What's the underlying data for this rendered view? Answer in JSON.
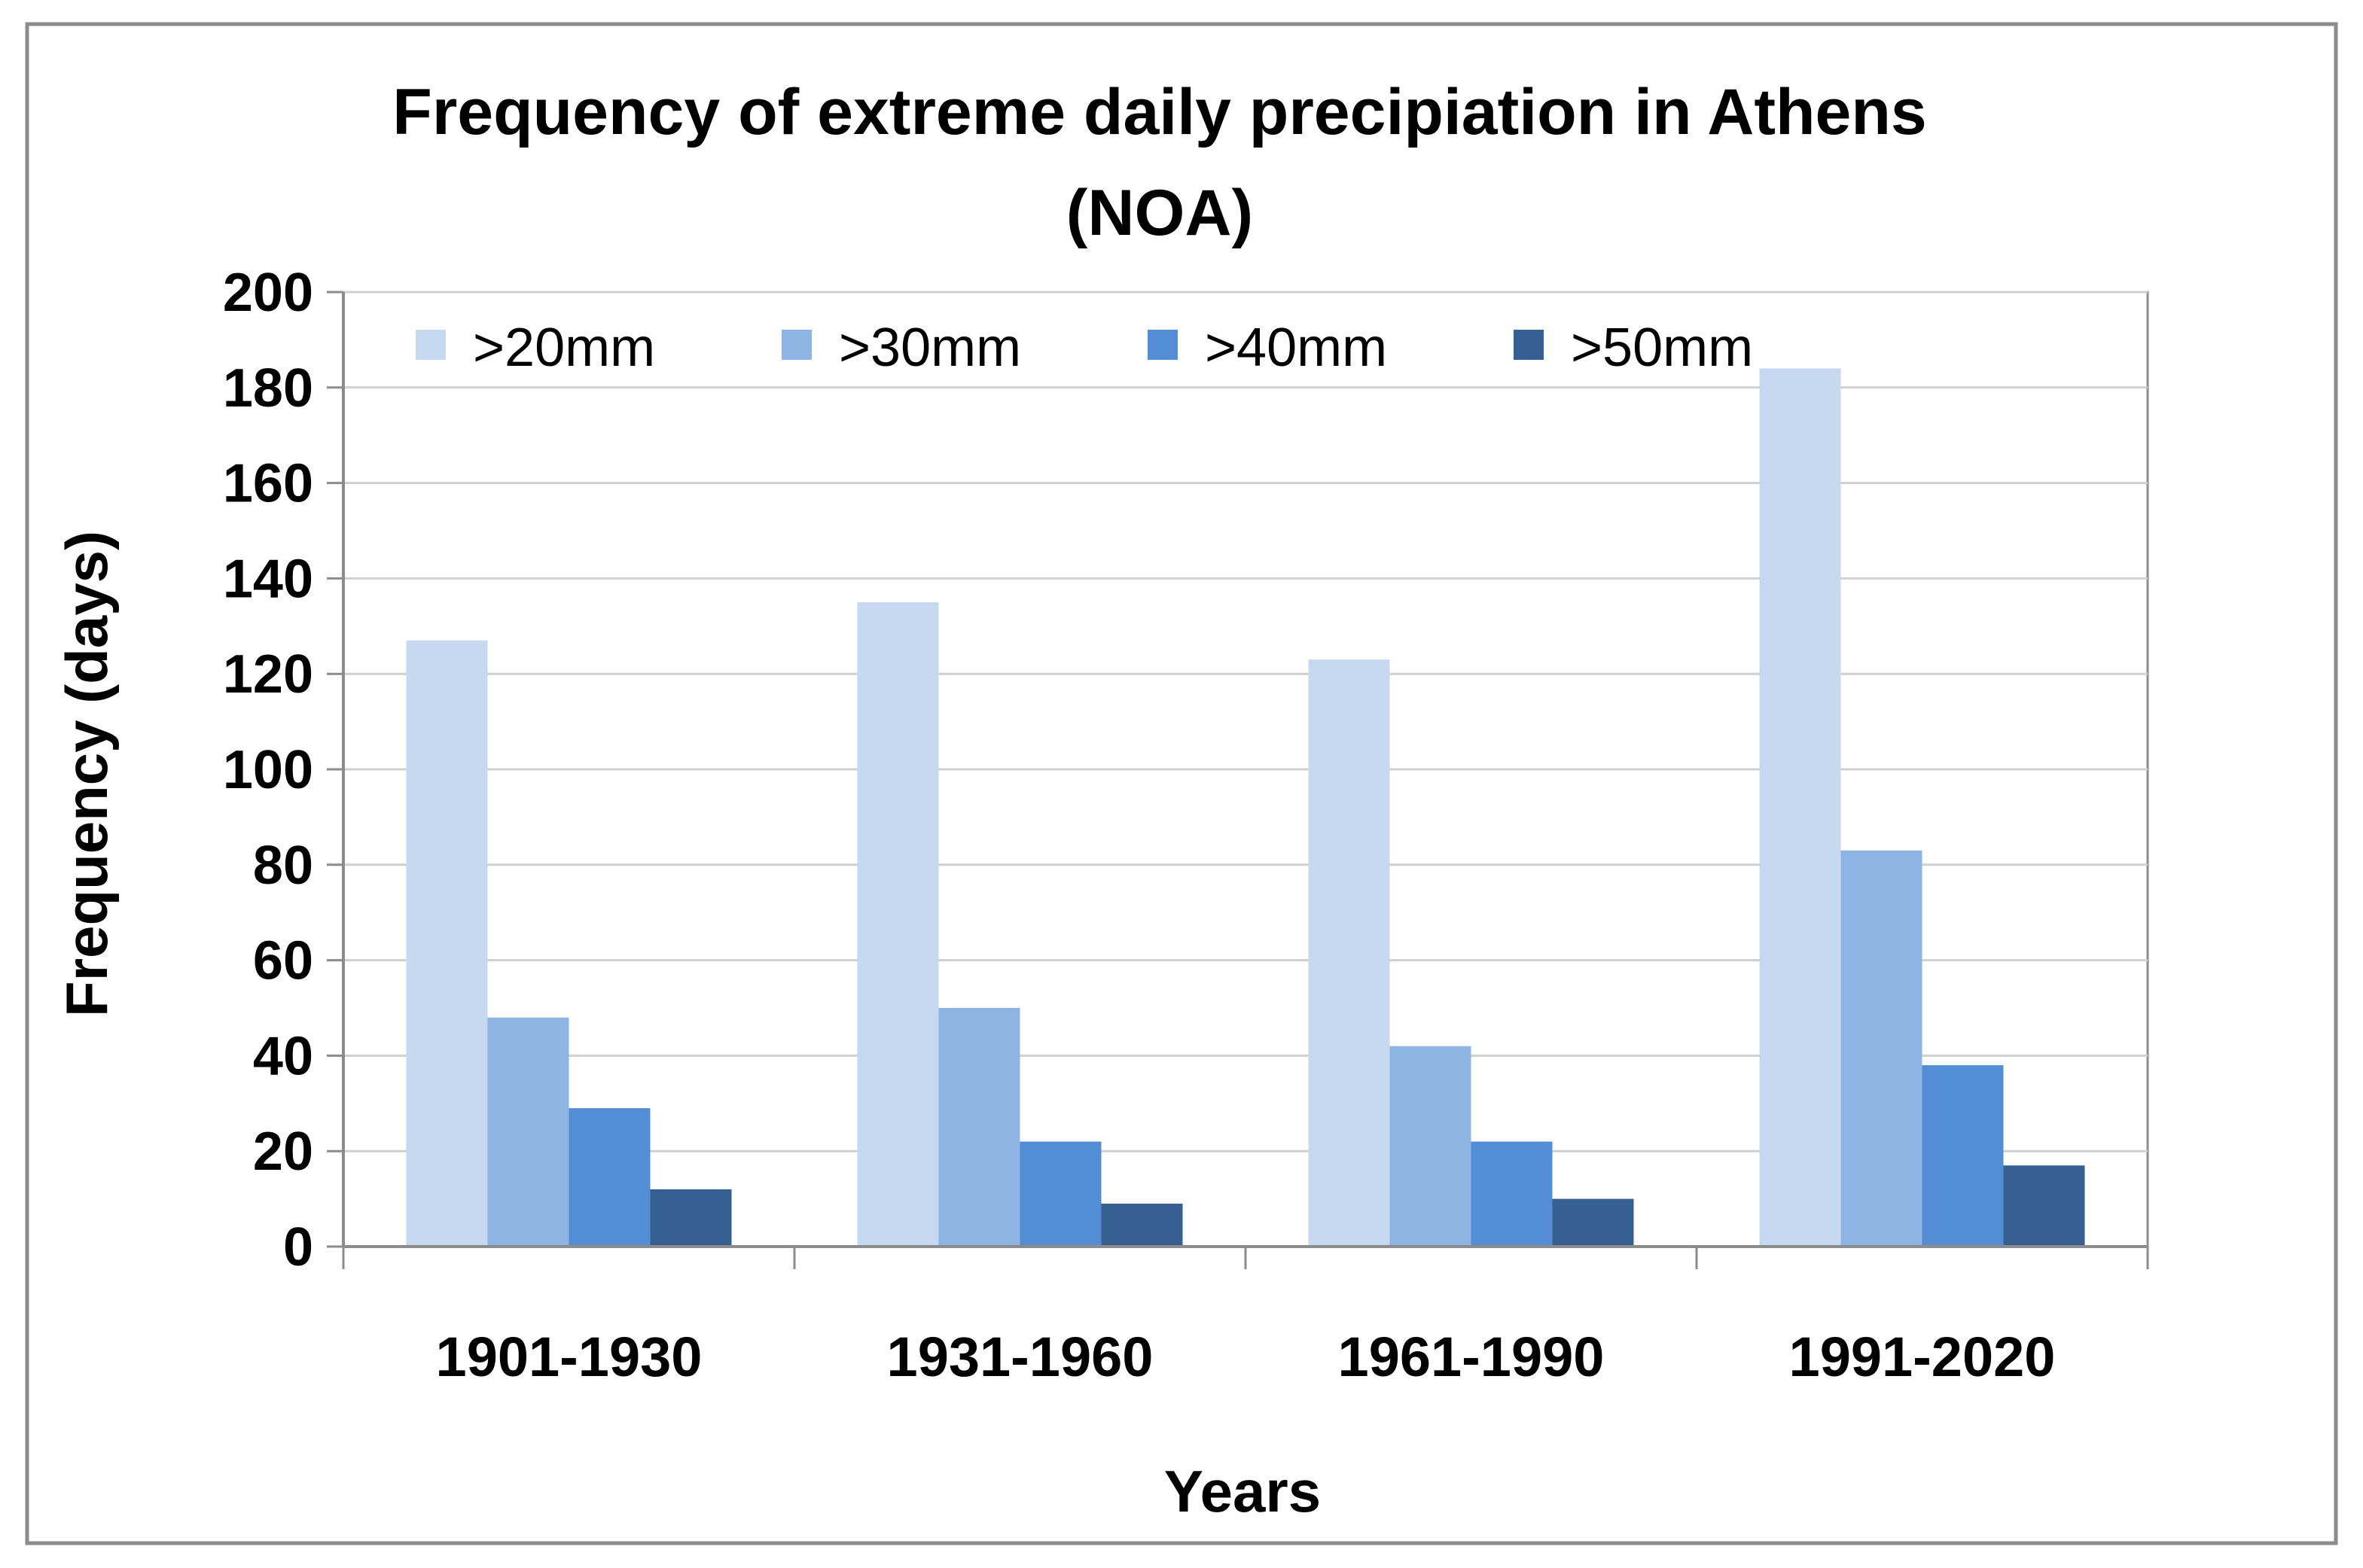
{
  "chart_data": {
    "type": "bar",
    "title_lines": [
      "Frequency of extreme daily precipiation in Athens",
      "(NOA)"
    ],
    "xlabel": "Years",
    "ylabel": "Frequency (days)",
    "ylim": [
      0,
      200
    ],
    "yticks": [
      0,
      20,
      40,
      60,
      80,
      100,
      120,
      140,
      160,
      180,
      200
    ],
    "grid": true,
    "legend_position": "top, horizontal inside plot",
    "categories": [
      "1901-1930",
      "1931-1960",
      "1961-1990",
      "1991-2020"
    ],
    "series": [
      {
        "name": ">20mm",
        "color": "#c6d9f1",
        "values": [
          127,
          135,
          123,
          184
        ]
      },
      {
        "name": ">30mm",
        "color": "#8eb4e3",
        "values": [
          48,
          50,
          42,
          83
        ]
      },
      {
        "name": ">40mm",
        "color": "#538dd5",
        "values": [
          29,
          22,
          22,
          38
        ]
      },
      {
        "name": ">50mm",
        "color": "#366092",
        "values": [
          12,
          9,
          10,
          17
        ]
      }
    ]
  }
}
